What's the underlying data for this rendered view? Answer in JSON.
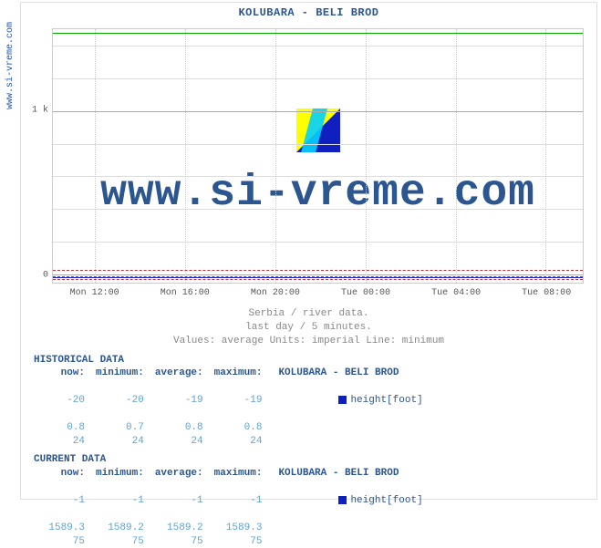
{
  "side_link": {
    "text": "www.si-vreme.com",
    "color": "#2255aa"
  },
  "chart": {
    "title": "KOLUBARA -  BELI BROD",
    "title_color": "#2c568f",
    "title_fontsize": 12,
    "background_color": "#ffffff",
    "border_color": "#e0e0e0",
    "plot": {
      "ylim": [
        -50,
        1500
      ],
      "yticks": [
        {
          "value": 0,
          "label": "0",
          "major": true
        },
        {
          "value": 1000,
          "label": "1 k",
          "major": true
        }
      ],
      "xticks": [
        {
          "pos_pct": 8,
          "label": "Mon 12:00"
        },
        {
          "pos_pct": 25,
          "label": "Mon 16:00"
        },
        {
          "pos_pct": 42,
          "label": "Mon 20:00"
        },
        {
          "pos_pct": 59,
          "label": "Tue 00:00"
        },
        {
          "pos_pct": 76,
          "label": "Tue 04:00"
        },
        {
          "pos_pct": 93,
          "label": "Tue 08:00"
        }
      ],
      "series": [
        {
          "name": "height_avg",
          "y_value": -19,
          "color": "#2222cc",
          "style": "solid"
        },
        {
          "name": "green_top",
          "y_value": 1480,
          "color": "#00aa00",
          "style": "solid"
        },
        {
          "name": "height_min",
          "y_value": -10,
          "color": "#c33333",
          "style": "dashed"
        },
        {
          "name": "red_upper",
          "y_value": 30,
          "color": "#c33333",
          "style": "dashed"
        },
        {
          "name": "red_lower",
          "y_value": -30,
          "color": "#c33333",
          "style": "dashed"
        }
      ],
      "grid_color": "#dddddd",
      "axis_color": "#aaaaaa"
    },
    "watermark": {
      "text": "www.si-vreme.com",
      "text_color": "#2c568f",
      "text_fontsize": 48,
      "icon_colors": [
        "#ffff00",
        "#00d0ff",
        "#1020c0"
      ]
    },
    "caption": {
      "line1": "Serbia / river data.",
      "line2": "last day / 5 minutes.",
      "line3": "Values: average  Units: imperial  Line: minimum",
      "color": "#888888"
    }
  },
  "historical": {
    "title": "HISTORICAL DATA",
    "columns": [
      "now:",
      "minimum:",
      "average:",
      "maximum:"
    ],
    "series_label": "KOLUBARA -  BELI BROD",
    "legend": {
      "swatch_color": "#1020c0",
      "label": "height[foot]"
    },
    "rows": [
      [
        "-20",
        "-20",
        "-19",
        "-19"
      ],
      [
        "0.8",
        "0.7",
        "0.8",
        "0.8"
      ],
      [
        "24",
        "24",
        "24",
        "24"
      ]
    ],
    "value_color": "#5fa3cf",
    "header_color": "#2c568f"
  },
  "current": {
    "title": "CURRENT DATA",
    "columns": [
      "now:",
      "minimum:",
      "average:",
      "maximum:"
    ],
    "series_label": "KOLUBARA -  BELI BROD",
    "legend": {
      "swatch_color": "#1020c0",
      "label": "height[foot]"
    },
    "rows": [
      [
        "-1",
        "-1",
        "-1",
        "-1"
      ],
      [
        "1589.3",
        "1589.2",
        "1589.2",
        "1589.3"
      ],
      [
        "75",
        "75",
        "75",
        "75"
      ]
    ],
    "value_color": "#5fa3cf",
    "header_color": "#2c568f"
  }
}
